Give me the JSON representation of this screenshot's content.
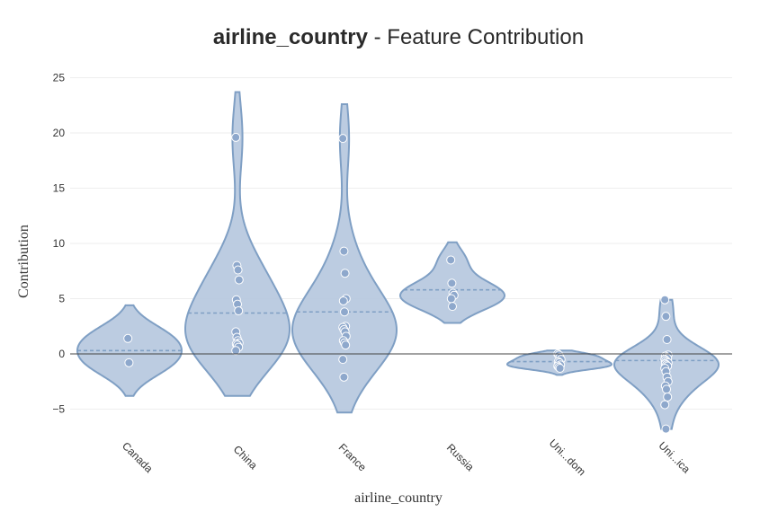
{
  "title": {
    "strong": "airline_country",
    "rest": " - Feature Contribution"
  },
  "axes": {
    "y_label": "Contribution",
    "x_label": "airline_country",
    "y_ticks": [
      "25",
      "20",
      "15",
      "10",
      "5",
      "0",
      "−5"
    ]
  },
  "colors": {
    "violin_fill": "#b5c7de",
    "violin_stroke": "#7f9fc4",
    "points": "#8ea8cc",
    "point_edge": "#ffffff",
    "zero_line": "#444444",
    "grid": "#eeeeee"
  },
  "chart_data": {
    "type": "violin",
    "title": "airline_country - Feature Contribution",
    "xlabel": "airline_country",
    "ylabel": "Contribution",
    "ylim": [
      -7.5,
      25.5
    ],
    "y_ticks": [
      -5,
      0,
      5,
      10,
      15,
      20,
      25
    ],
    "grid": true,
    "legend": "none",
    "categories": [
      "Canada",
      "China",
      "France",
      "Russia",
      "Uni...dom",
      "Uni...ica"
    ],
    "series": [
      {
        "category": "Canada",
        "mean": 0.3,
        "range": [
          -3.8,
          4.4
        ],
        "points": [
          1.4,
          -0.8
        ]
      },
      {
        "category": "China",
        "mean": 3.7,
        "range": [
          -3.8,
          23.7
        ],
        "points": [
          19.6,
          8.0,
          7.6,
          6.7,
          4.9,
          4.5,
          3.9,
          2.0,
          1.5,
          1.2,
          1.0,
          0.9,
          0.8,
          0.6,
          0.3
        ]
      },
      {
        "category": "France",
        "mean": 3.8,
        "range": [
          -5.3,
          22.6
        ],
        "points": [
          19.5,
          9.3,
          7.3,
          5.0,
          4.8,
          3.8,
          2.5,
          2.4,
          2.2,
          2.0,
          1.6,
          1.2,
          1.0,
          0.8,
          -0.5,
          -2.1
        ]
      },
      {
        "category": "Russia",
        "mean": 5.8,
        "range": [
          2.8,
          10.1
        ],
        "points": [
          8.5,
          6.4,
          5.5,
          5.3,
          5.0,
          4.3
        ]
      },
      {
        "category": "Uni...dom",
        "mean": -0.7,
        "range": [
          -1.9,
          0.3
        ],
        "points": [
          0.0,
          -0.1,
          -0.3,
          -0.5,
          -0.7,
          -0.8,
          -1.0,
          -1.1,
          -1.2,
          -1.3
        ]
      },
      {
        "category": "Uni...ica",
        "mean": -0.6,
        "range": [
          -6.8,
          4.9
        ],
        "points": [
          4.9,
          3.4,
          1.3,
          -0.1,
          -0.2,
          -0.3,
          -0.4,
          -0.5,
          -0.6,
          -0.7,
          -0.8,
          -0.9,
          -1.0,
          -1.1,
          -1.3,
          -1.6,
          -2.1,
          -2.5,
          -2.9,
          -3.2,
          -3.9,
          -4.6,
          -6.8
        ]
      }
    ]
  }
}
